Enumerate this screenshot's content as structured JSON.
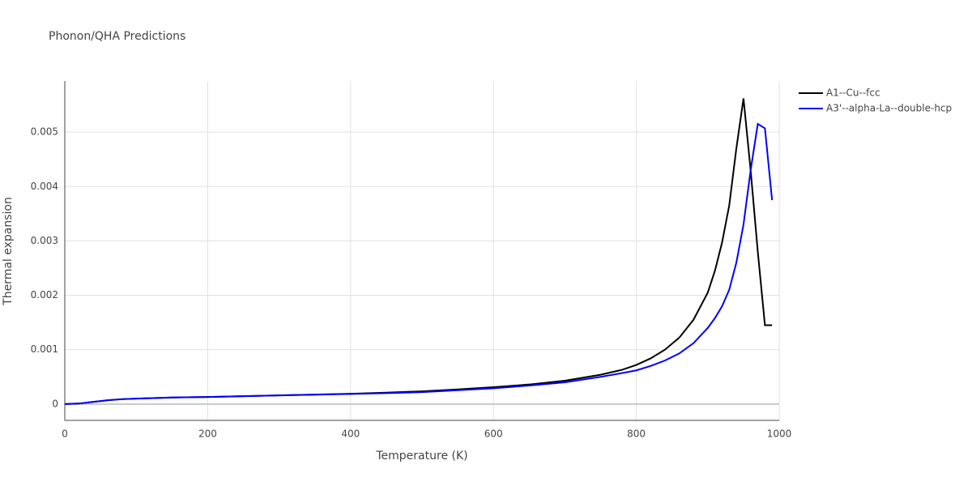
{
  "chart_data": {
    "type": "line",
    "title": "Phonon/QHA Predictions",
    "x_label": "Temperature (K)",
    "y_label": "Thermal expansion",
    "x": [
      0,
      20,
      40,
      60,
      80,
      100,
      150,
      200,
      250,
      300,
      350,
      400,
      450,
      500,
      550,
      600,
      650,
      700,
      750,
      780,
      800,
      820,
      840,
      860,
      880,
      900,
      910,
      920,
      930,
      940,
      950,
      960,
      970,
      980,
      990
    ],
    "series": [
      {
        "name": "A1--Cu--fcc",
        "color": "#000000",
        "values": [
          0,
          1e-05,
          4e-05,
          7e-05,
          9e-05,
          0.0001,
          0.00012,
          0.00013,
          0.000145,
          0.00016,
          0.000175,
          0.00019,
          0.00021,
          0.000235,
          0.00027,
          0.00031,
          0.00036,
          0.00043,
          0.00054,
          0.00063,
          0.00072,
          0.00084,
          0.001,
          0.00122,
          0.00155,
          0.00205,
          0.00245,
          0.00297,
          0.00365,
          0.0047,
          0.00562,
          0.0043,
          0.0028,
          0.00145,
          0.00145
        ]
      },
      {
        "name": "A3'--alpha-La--double-hcp",
        "color": "#0000ff",
        "values": [
          0,
          1e-05,
          4e-05,
          7e-05,
          9e-05,
          0.0001,
          0.00012,
          0.00013,
          0.000145,
          0.00016,
          0.000172,
          0.000185,
          0.0002,
          0.00022,
          0.000255,
          0.00029,
          0.00034,
          0.0004,
          0.0005,
          0.00057,
          0.00062,
          0.0007,
          0.0008,
          0.00093,
          0.00112,
          0.0014,
          0.00158,
          0.0018,
          0.0021,
          0.0026,
          0.0033,
          0.0043,
          0.00515,
          0.00507,
          0.00375
        ]
      }
    ],
    "xlim": [
      0,
      1000
    ],
    "xticks": [
      0,
      200,
      400,
      600,
      800,
      1000
    ],
    "ylim": [
      -0.0003,
      0.00594
    ],
    "yticks": [
      0,
      0.001,
      0.002,
      0.003,
      0.004,
      0.005
    ],
    "grid": true
  }
}
